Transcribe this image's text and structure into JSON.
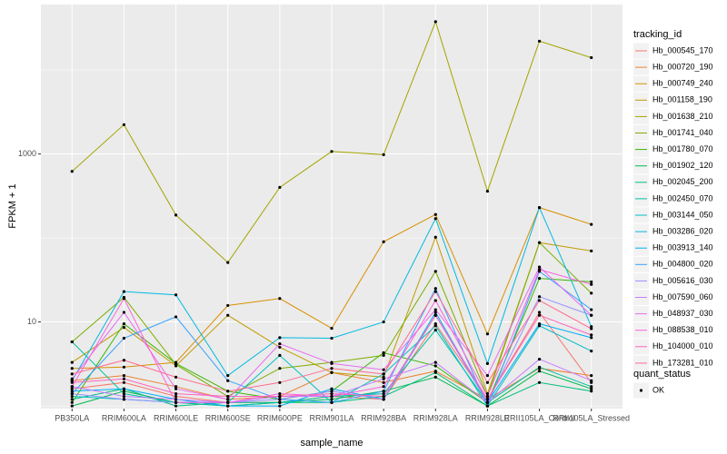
{
  "chart_data": {
    "type": "line",
    "y_label": "FPKM + 1",
    "x_label": "sample_name",
    "legend_title": "tracking_id",
    "log_y": true,
    "grid": true,
    "point_color": "#000000",
    "shape_legend": {
      "title": "quant_status",
      "labels": [
        "OK"
      ]
    },
    "categories": [
      "PB350LA",
      "RRIM600LA",
      "RRIM600LE",
      "RRIM600SE",
      "RRIM600PE",
      "RRIM901LA",
      "RRIM928BA",
      "RRIM928LA",
      "RRIM928LE",
      "RRII105LA_Control",
      "RRII105LA_Stressed"
    ],
    "ylim": [
      0.93,
      60000
    ],
    "yticks": [
      10,
      1000
    ],
    "minor_grid": [
      1,
      100,
      10000
    ],
    "series": [
      {
        "name": "Hb_000545_170",
        "color": "#F8766D",
        "values": [
          1.6,
          1.9,
          1.3,
          1.1,
          1.1,
          1.3,
          1.2,
          9.5,
          1.2,
          13,
          1.9
        ]
      },
      {
        "name": "Hb_000720_190",
        "color": "#EA8331",
        "values": [
          2.0,
          2.3,
          1.7,
          1.2,
          1.3,
          2.5,
          1.9,
          2.6,
          1.2,
          2.8,
          2.3
        ]
      },
      {
        "name": "Hb_000749_240",
        "color": "#D89000",
        "values": [
          2.8,
          2.9,
          3.3,
          15.7,
          19,
          8.4,
          90,
          190,
          7.2,
          230,
          145
        ]
      },
      {
        "name": "Hb_001158_190",
        "color": "#C09B00",
        "values": [
          3.3,
          8.6,
          3.0,
          12,
          5.0,
          2.5,
          2.2,
          102,
          1.4,
          88,
          70
        ]
      },
      {
        "name": "Hb_001638_210",
        "color": "#A3A500",
        "values": [
          620,
          2230,
          187,
          51,
          400,
          1070,
          980,
          37500,
          360,
          22000,
          14000
        ]
      },
      {
        "name": "Hb_001741_040",
        "color": "#7CAE00",
        "values": [
          5.8,
          19.6,
          3.1,
          1.3,
          2.8,
          3.3,
          4.0,
          40,
          1.3,
          88,
          22
        ]
      },
      {
        "name": "Hb_001780_070",
        "color": "#39B600",
        "values": [
          1.1,
          9.5,
          3.2,
          1.5,
          1.2,
          1.5,
          4.3,
          3.0,
          1.1,
          33,
          30
        ]
      },
      {
        "name": "Hb_001902_120",
        "color": "#00BB4E",
        "values": [
          1.0,
          1.5,
          1.1,
          1.0,
          1.1,
          1.2,
          1.5,
          2.2,
          1.0,
          2.6,
          1.6
        ]
      },
      {
        "name": "Hb_002045_200",
        "color": "#00BF7D",
        "values": [
          1.2,
          1.6,
          1.0,
          1.1,
          1.1,
          1.1,
          1.3,
          2.5,
          1.0,
          1.9,
          1.5
        ]
      },
      {
        "name": "Hb_002450_070",
        "color": "#00C1A3",
        "values": [
          5.8,
          1.4,
          1.1,
          1.0,
          1.1,
          1.3,
          1.4,
          8.0,
          1.1,
          2.9,
          1.7
        ]
      },
      {
        "name": "Hb_003144_050",
        "color": "#00BFC4",
        "values": [
          1.3,
          1.2,
          1.1,
          1.1,
          4.0,
          1.1,
          2.4,
          9.0,
          1.0,
          9.0,
          4.5
        ]
      },
      {
        "name": "Hb_003286_020",
        "color": "#00BAE0",
        "values": [
          2.0,
          23,
          21,
          2.3,
          6.5,
          6.4,
          10,
          170,
          3.2,
          230,
          8.8
        ]
      },
      {
        "name": "Hb_003913_140",
        "color": "#00B0F6",
        "values": [
          1.5,
          1.6,
          1.2,
          1.0,
          1.0,
          1.6,
          1.2,
          13,
          1.1,
          9.5,
          6.5
        ]
      },
      {
        "name": "Hb_004800_020",
        "color": "#35A2FF",
        "values": [
          1.4,
          6.4,
          11.5,
          2.0,
          1.2,
          1.1,
          1.5,
          25,
          1.0,
          40,
          14
        ]
      },
      {
        "name": "Hb_005616_030",
        "color": "#9590FF",
        "values": [
          1.4,
          1.2,
          1.1,
          1.1,
          1.2,
          1.5,
          1.2,
          12,
          1.1,
          20,
          12
        ]
      },
      {
        "name": "Hb_007590_060",
        "color": "#C77CFF",
        "values": [
          1.7,
          1.3,
          1.2,
          1.1,
          1.3,
          1.3,
          2.1,
          3.3,
          1.1,
          3.6,
          2.0
        ]
      },
      {
        "name": "Hb_048937_030",
        "color": "#E76BF3",
        "values": [
          2.1,
          13,
          1.6,
          1.2,
          5.5,
          3.2,
          2.7,
          14,
          2.3,
          45,
          12
        ]
      },
      {
        "name": "Hb_088538_010",
        "color": "#FA62DB",
        "values": [
          1.7,
          19,
          1.1,
          1.1,
          1.4,
          1.3,
          1.7,
          18,
          1.3,
          42,
          28
        ]
      },
      {
        "name": "Hb_104000_010",
        "color": "#FF62BC",
        "values": [
          1.9,
          2.1,
          1.4,
          1.3,
          1.3,
          1.4,
          1.3,
          12,
          1.2,
          12,
          7
        ]
      },
      {
        "name": "Hb_173281_010",
        "color": "#FF6C91",
        "values": [
          2.4,
          3.5,
          2.2,
          1.5,
          1.9,
          2.8,
          2.4,
          23,
          1.9,
          18,
          8.3
        ]
      }
    ]
  }
}
